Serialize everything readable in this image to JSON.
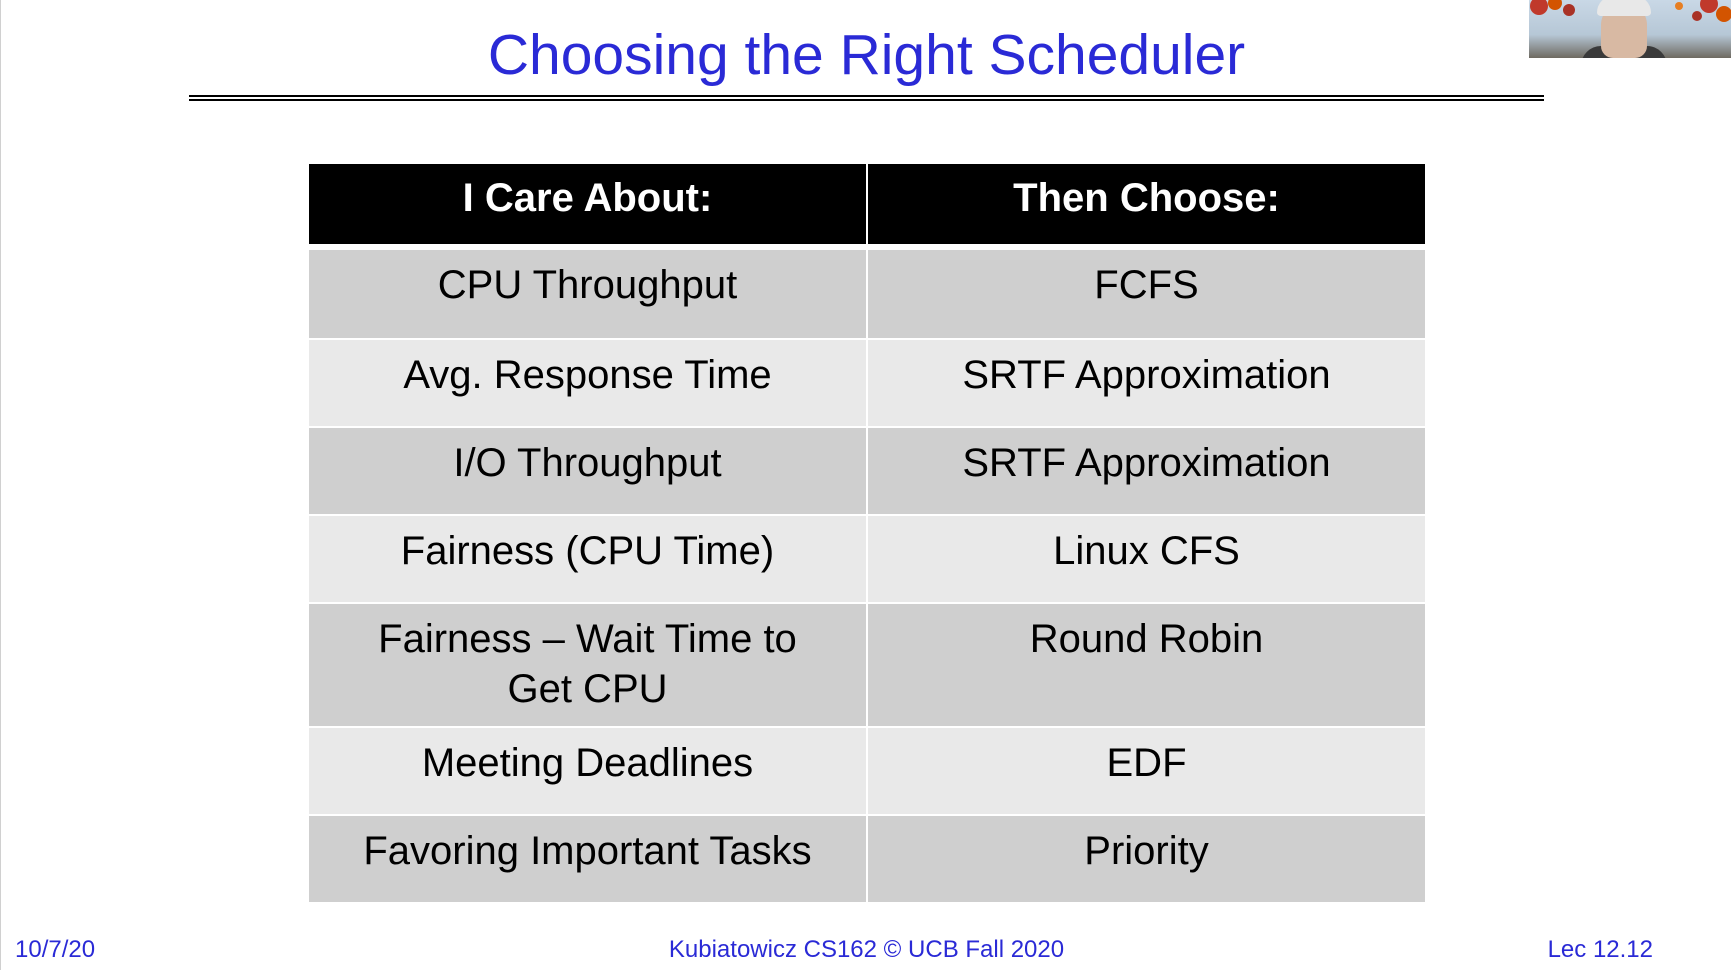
{
  "slide": {
    "title": "Choosing the Right Scheduler",
    "accent_color": "#2a2ad6"
  },
  "table": {
    "headers": [
      "I Care About:",
      "Then Choose:"
    ],
    "rows": [
      [
        "CPU Throughput",
        "FCFS"
      ],
      [
        "Avg. Response Time",
        "SRTF Approximation"
      ],
      [
        "I/O Throughput",
        "SRTF Approximation"
      ],
      [
        "Fairness (CPU Time)",
        "Linux CFS"
      ],
      [
        "Fairness – Wait Time to Get CPU",
        "Round Robin"
      ],
      [
        "Meeting Deadlines",
        "EDF"
      ],
      [
        "Favoring Important Tasks",
        "Priority"
      ]
    ]
  },
  "footer": {
    "date": "10/7/20",
    "course": "Kubiatowicz CS162 © UCB Fall 2020",
    "lecture": "Lec 12.12"
  }
}
